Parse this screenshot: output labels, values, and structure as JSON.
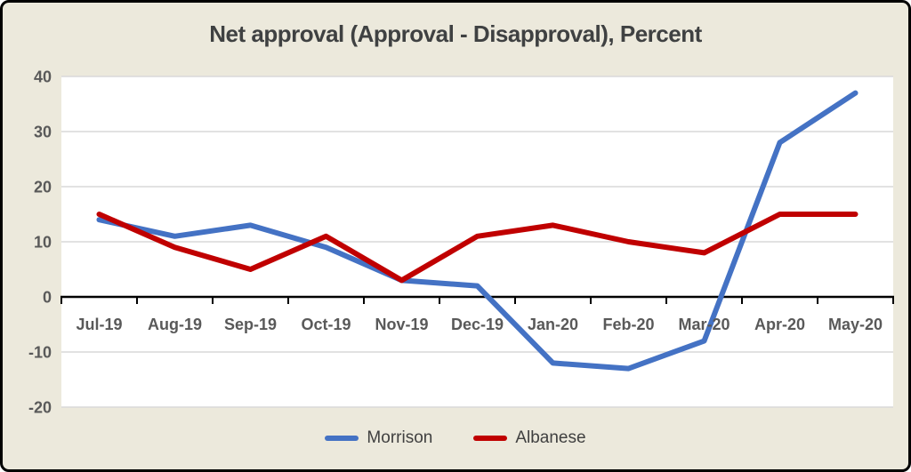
{
  "title": "Net approval (Approval - Disapproval), Percent",
  "chart_data": {
    "type": "line",
    "title": "Net approval (Approval - Disapproval), Percent",
    "categories": [
      "Jul-19",
      "Aug-19",
      "Sep-19",
      "Oct-19",
      "Nov-19",
      "Dec-19",
      "Jan-20",
      "Feb-20",
      "Mar-20",
      "Apr-20",
      "May-20"
    ],
    "series": [
      {
        "name": "Morrison",
        "color": "#4472C4",
        "values": [
          14,
          11,
          13,
          9,
          3,
          2,
          -12,
          -13,
          -8,
          28,
          37
        ]
      },
      {
        "name": "Albanese",
        "color": "#C00000",
        "values": [
          15,
          9,
          5,
          11,
          3,
          11,
          13,
          10,
          8,
          15,
          15
        ]
      }
    ],
    "xlabel": "",
    "ylabel": "",
    "ylim": [
      -20,
      40
    ],
    "yticks": [
      40,
      30,
      20,
      10,
      0,
      -10,
      -20
    ],
    "grid": true,
    "legend_position": "bottom"
  },
  "colors": {
    "background": "#ECE9DC",
    "plot_background": "#FFFFFF",
    "gridline": "#D9D9D9",
    "axis": "#000000",
    "title_text": "#3F4142",
    "tick_text": "#595959",
    "border": "#000000"
  },
  "legend": {
    "items": [
      {
        "label": "Morrison"
      },
      {
        "label": "Albanese"
      }
    ]
  }
}
